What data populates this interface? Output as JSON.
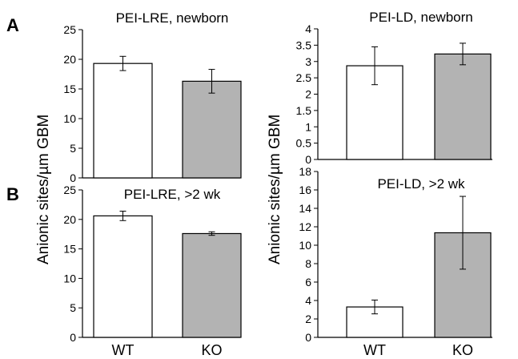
{
  "panel_labels": {
    "a": "A",
    "b": "B"
  },
  "y_axis_label": "Anionic sites/µm GBM",
  "colors": {
    "wt_fill": "#ffffff",
    "ko_fill": "#b3b3b3",
    "stroke": "#000000"
  },
  "chart_data": [
    {
      "type": "bar",
      "title": "PEI-LRE, newborn",
      "categories": [
        "WT",
        "KO"
      ],
      "values": [
        19.3,
        16.3
      ],
      "errors": [
        1.2,
        2.0
      ],
      "ylim": [
        0,
        25
      ],
      "yticks": [
        0,
        5,
        10,
        15,
        20,
        25
      ],
      "show_xlabels": false,
      "grid": false
    },
    {
      "type": "bar",
      "title": "PEI-LD, newborn",
      "categories": [
        "WT",
        "KO"
      ],
      "values": [
        2.87,
        3.23
      ],
      "errors": [
        0.58,
        0.33
      ],
      "ylim": [
        0,
        4
      ],
      "yticks": [
        0,
        0.5,
        1,
        1.5,
        2,
        2.5,
        3,
        3.5,
        4
      ],
      "show_xlabels": false,
      "grid": false
    },
    {
      "type": "bar",
      "title": "PEI-LRE, >2 wk",
      "categories": [
        "WT",
        "KO"
      ],
      "values": [
        20.6,
        17.6
      ],
      "errors": [
        0.8,
        0.3
      ],
      "ylim": [
        0,
        25
      ],
      "yticks": [
        0,
        5,
        10,
        15,
        20,
        25
      ],
      "show_xlabels": true,
      "grid": false
    },
    {
      "type": "bar",
      "title": "PEI-LD, >2 wk",
      "categories": [
        "WT",
        "KO"
      ],
      "values": [
        3.3,
        11.35
      ],
      "errors": [
        0.75,
        3.95
      ],
      "ylim": [
        0,
        18
      ],
      "yticks": [
        0,
        2,
        4,
        6,
        8,
        10,
        12,
        14,
        16,
        18
      ],
      "show_xlabels": true,
      "grid": false
    }
  ]
}
